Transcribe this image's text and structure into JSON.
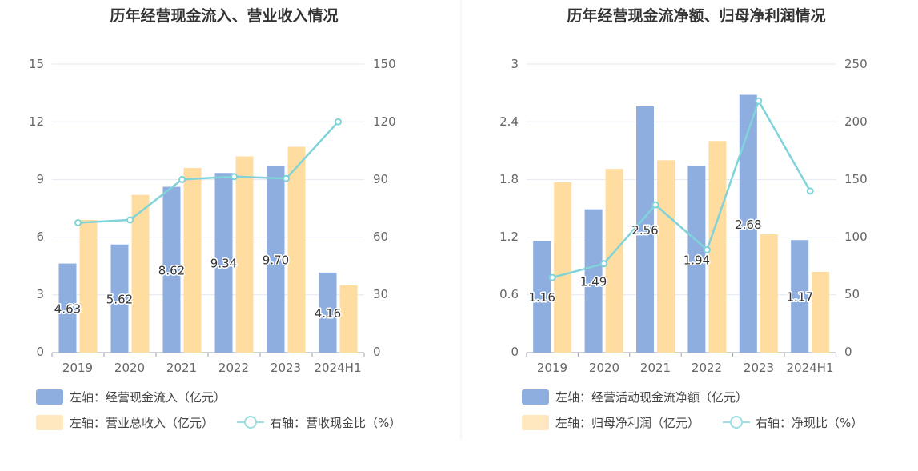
{
  "colors": {
    "bar_a": "#8eaedf",
    "bar_b": "#ffdca0",
    "line": "#7fd3d9",
    "grid": "#e4e8f0",
    "axis": "#9aa0aa",
    "divider": "#eeeeee"
  },
  "chart_data": [
    {
      "type": "bar",
      "title": "历年经营现金流入、营业收入情况",
      "categories": [
        "2019",
        "2020",
        "2021",
        "2022",
        "2023",
        "2024H1"
      ],
      "y_left": {
        "ticks": [
          "0",
          "3",
          "6",
          "9",
          "12",
          "15"
        ],
        "ylim": [
          0,
          15
        ]
      },
      "y_right": {
        "ticks": [
          "0",
          "30",
          "60",
          "90",
          "120",
          "150"
        ],
        "ylim": [
          0,
          150
        ]
      },
      "grid": true,
      "series": [
        {
          "name": "左轴：经营现金流入（亿元）",
          "kind": "bar",
          "axis": "left",
          "values": [
            4.63,
            5.62,
            8.62,
            9.34,
            9.7,
            4.16
          ],
          "labels": [
            "4.63",
            "5.62",
            "8.62",
            "9.34",
            "9.70",
            "4.16"
          ]
        },
        {
          "name": "左轴：营业总收入（亿元）",
          "kind": "bar",
          "axis": "left",
          "values": [
            6.9,
            8.2,
            9.6,
            10.2,
            10.7,
            3.5
          ]
        },
        {
          "name": "右轴：营收现金比（%）",
          "kind": "line",
          "axis": "right",
          "values": [
            67.5,
            69,
            90,
            91.5,
            90.5,
            120
          ]
        }
      ],
      "legend_position": "bottom-left"
    },
    {
      "type": "bar",
      "title": "历年经营现金流净额、归母净利润情况",
      "categories": [
        "2019",
        "2020",
        "2021",
        "2022",
        "2023",
        "2024H1"
      ],
      "y_left": {
        "ticks": [
          "0",
          "0.6",
          "1.2",
          "1.8",
          "2.4",
          "3"
        ],
        "ylim": [
          0,
          3
        ]
      },
      "y_right": {
        "ticks": [
          "0",
          "50",
          "100",
          "150",
          "200",
          "250"
        ],
        "ylim": [
          0,
          250
        ]
      },
      "grid": true,
      "series": [
        {
          "name": "左轴：经营活动现金流净额（亿元）",
          "kind": "bar",
          "axis": "left",
          "values": [
            1.16,
            1.49,
            2.56,
            1.94,
            2.68,
            1.17
          ],
          "labels": [
            "1.16",
            "1.49",
            "2.56",
            "1.94",
            "2.68",
            "1.17"
          ]
        },
        {
          "name": "左轴：归母净利润（亿元）",
          "kind": "bar",
          "axis": "left",
          "values": [
            1.77,
            1.91,
            2.0,
            2.2,
            1.23,
            0.84
          ]
        },
        {
          "name": "右轴：净现比（%）",
          "kind": "line",
          "axis": "right",
          "values": [
            65,
            77,
            128,
            89,
            218,
            140
          ]
        }
      ],
      "legend_position": "bottom-left"
    }
  ]
}
